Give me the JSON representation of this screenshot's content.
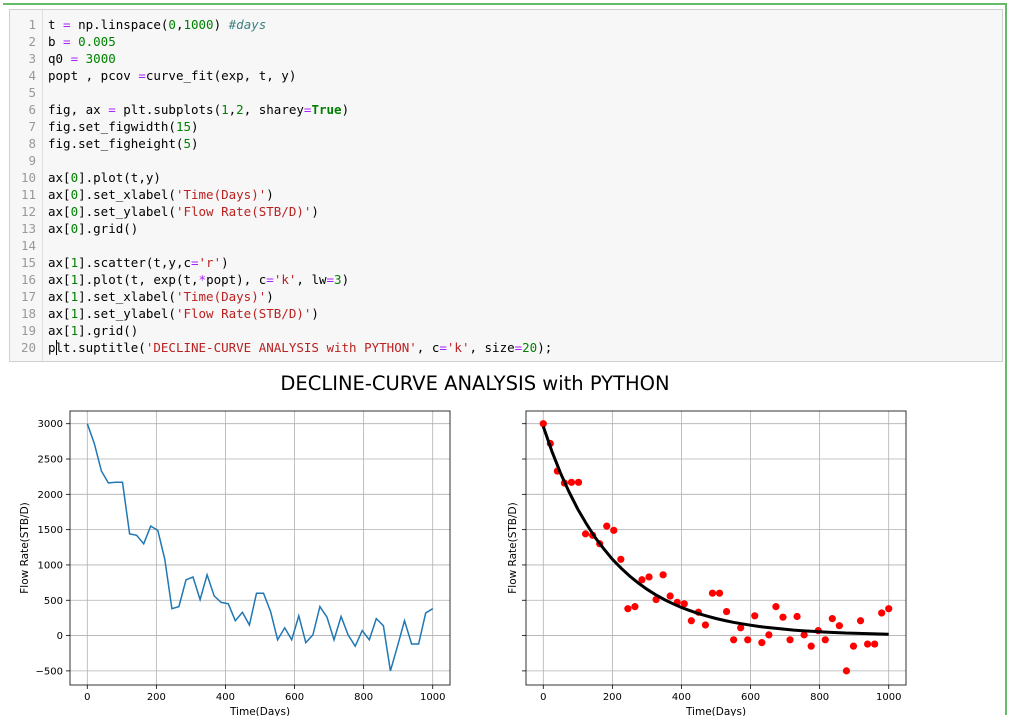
{
  "code_lines": [
    [
      [
        "t",
        "var"
      ],
      [
        " = ",
        "op"
      ],
      [
        "np.linspace(",
        "var"
      ],
      [
        "0",
        "num"
      ],
      [
        ",",
        "var"
      ],
      [
        "1000",
        "num"
      ],
      [
        ") ",
        "var"
      ],
      [
        "#days",
        "com"
      ]
    ],
    [
      [
        "b",
        "var"
      ],
      [
        " = ",
        "op"
      ],
      [
        "0.005",
        "num"
      ]
    ],
    [
      [
        "q0",
        "var"
      ],
      [
        " = ",
        "op"
      ],
      [
        "3000",
        "num"
      ]
    ],
    [
      [
        "popt , pcov ",
        "var"
      ],
      [
        "=",
        "op"
      ],
      [
        "curve_fit(exp, t, y)",
        "var"
      ]
    ],
    [],
    [
      [
        "fig, ax ",
        "var"
      ],
      [
        "=",
        "op"
      ],
      [
        " plt.subplots(",
        "var"
      ],
      [
        "1",
        "num"
      ],
      [
        ",",
        "var"
      ],
      [
        "2",
        "num"
      ],
      [
        ", sharey",
        "var"
      ],
      [
        "=",
        "op"
      ],
      [
        "True",
        "kw"
      ],
      [
        ")",
        "var"
      ]
    ],
    [
      [
        "fig.set_figwidth(",
        "var"
      ],
      [
        "15",
        "num"
      ],
      [
        ")",
        "var"
      ]
    ],
    [
      [
        "fig.set_figheight(",
        "var"
      ],
      [
        "5",
        "num"
      ],
      [
        ")",
        "var"
      ]
    ],
    [],
    [
      [
        "ax[",
        "var"
      ],
      [
        "0",
        "num"
      ],
      [
        "].plot(t,y)",
        "var"
      ]
    ],
    [
      [
        "ax[",
        "var"
      ],
      [
        "0",
        "num"
      ],
      [
        "].set_xlabel(",
        "var"
      ],
      [
        "'Time(Days)'",
        "str"
      ],
      [
        ")",
        "var"
      ]
    ],
    [
      [
        "ax[",
        "var"
      ],
      [
        "0",
        "num"
      ],
      [
        "].set_ylabel(",
        "var"
      ],
      [
        "'Flow Rate(STB/D)'",
        "str"
      ],
      [
        ")",
        "var"
      ]
    ],
    [
      [
        "ax[",
        "var"
      ],
      [
        "0",
        "num"
      ],
      [
        "].grid()",
        "var"
      ]
    ],
    [],
    [
      [
        "ax[",
        "var"
      ],
      [
        "1",
        "num"
      ],
      [
        "].scatter(t,y,c",
        "var"
      ],
      [
        "=",
        "op"
      ],
      [
        "'r'",
        "str"
      ],
      [
        ")",
        "var"
      ]
    ],
    [
      [
        "ax[",
        "var"
      ],
      [
        "1",
        "num"
      ],
      [
        "].plot(t, exp(t,",
        "var"
      ],
      [
        "*",
        "op"
      ],
      [
        "popt), c",
        "var"
      ],
      [
        "=",
        "op"
      ],
      [
        "'k'",
        "str"
      ],
      [
        ", lw",
        "var"
      ],
      [
        "=",
        "op"
      ],
      [
        "3",
        "num"
      ],
      [
        ")",
        "var"
      ]
    ],
    [
      [
        "ax[",
        "var"
      ],
      [
        "1",
        "num"
      ],
      [
        "].set_xlabel(",
        "var"
      ],
      [
        "'Time(Days)'",
        "str"
      ],
      [
        ")",
        "var"
      ]
    ],
    [
      [
        "ax[",
        "var"
      ],
      [
        "1",
        "num"
      ],
      [
        "].set_ylabel(",
        "var"
      ],
      [
        "'Flow Rate(STB/D)'",
        "str"
      ],
      [
        ")",
        "var"
      ]
    ],
    [
      [
        "ax[",
        "var"
      ],
      [
        "1",
        "num"
      ],
      [
        "].grid()",
        "var"
      ]
    ],
    [
      [
        "plt.suptitle(",
        "var"
      ],
      [
        "'DECLINE-CURVE ANALYSIS with PYTHON'",
        "str"
      ],
      [
        ", c",
        "var"
      ],
      [
        "=",
        "op"
      ],
      [
        "'k'",
        "str"
      ],
      [
        ", size",
        "var"
      ],
      [
        "=",
        "op"
      ],
      [
        "20",
        "num"
      ],
      [
        ");",
        "var"
      ]
    ]
  ],
  "figure": {
    "suptitle": "DECLINE-CURVE ANALYSIS with PYTHON"
  },
  "chart_data": [
    {
      "type": "line",
      "xlabel": "Time(Days)",
      "ylabel": "Flow Rate(STB/D)",
      "xlim": [
        -50,
        1050
      ],
      "ylim": [
        -700,
        3180
      ],
      "xticks": [
        0,
        200,
        400,
        600,
        800,
        1000
      ],
      "yticks": [
        -500,
        0,
        500,
        1000,
        1500,
        2000,
        2500,
        3000
      ],
      "grid": true,
      "line_color": "#1f77b4",
      "x": [
        0,
        20.4,
        40.8,
        61.2,
        81.6,
        102,
        122.4,
        142.9,
        163.3,
        183.7,
        204.1,
        224.5,
        244.9,
        265.3,
        285.7,
        306.1,
        326.5,
        346.9,
        367.3,
        387.8,
        408.2,
        428.6,
        449,
        469.4,
        489.8,
        510.2,
        530.6,
        551,
        571.4,
        591.8,
        612.2,
        632.7,
        653.1,
        673.5,
        693.9,
        714.3,
        734.7,
        755.1,
        775.5,
        795.9,
        816.3,
        836.7,
        857.1,
        877.6,
        898,
        918.4,
        938.8,
        959.2,
        979.6,
        1000
      ],
      "y": [
        3000,
        2720,
        2330,
        2160,
        2170,
        2170,
        1440,
        1420,
        1300,
        1550,
        1490,
        1080,
        380,
        410,
        790,
        830,
        510,
        860,
        560,
        470,
        450,
        210,
        330,
        150,
        600,
        600,
        340,
        -60,
        110,
        -60,
        280,
        -100,
        10,
        410,
        260,
        -60,
        270,
        10,
        -150,
        70,
        -60,
        240,
        140,
        -500,
        -150,
        210,
        -120,
        -120,
        320,
        380
      ]
    },
    {
      "type": "scatter",
      "xlabel": "Time(Days)",
      "ylabel": "Flow Rate(STB/D)",
      "xlim": [
        -50,
        1050
      ],
      "ylim": [
        -700,
        3180
      ],
      "xticks": [
        0,
        200,
        400,
        600,
        800,
        1000
      ],
      "yticks": [
        -500,
        0,
        500,
        1000,
        1500,
        2000,
        2500,
        3000
      ],
      "grid": true,
      "point_color": "#ff0000",
      "fit_color": "#000000",
      "x": [
        0,
        20.4,
        40.8,
        61.2,
        81.6,
        102,
        122.4,
        142.9,
        163.3,
        183.7,
        204.1,
        224.5,
        244.9,
        265.3,
        285.7,
        306.1,
        326.5,
        346.9,
        367.3,
        387.8,
        408.2,
        428.6,
        449,
        469.4,
        489.8,
        510.2,
        530.6,
        551,
        571.4,
        591.8,
        612.2,
        632.7,
        653.1,
        673.5,
        693.9,
        714.3,
        734.7,
        755.1,
        775.5,
        795.9,
        816.3,
        836.7,
        857.1,
        877.6,
        898,
        918.4,
        938.8,
        959.2,
        979.6,
        1000
      ],
      "y": [
        3000,
        2720,
        2330,
        2160,
        2170,
        2170,
        1440,
        1420,
        1300,
        1550,
        1490,
        1080,
        380,
        410,
        790,
        830,
        510,
        860,
        560,
        470,
        450,
        210,
        330,
        150,
        600,
        600,
        340,
        -60,
        110,
        -60,
        280,
        -100,
        10,
        410,
        260,
        -60,
        270,
        10,
        -150,
        70,
        -60,
        240,
        140,
        -500,
        -150,
        210,
        -120,
        -120,
        320,
        380
      ],
      "fit_x": [
        0,
        25,
        50,
        75,
        100,
        125,
        150,
        175,
        200,
        225,
        250,
        275,
        300,
        325,
        350,
        375,
        400,
        425,
        450,
        475,
        500,
        525,
        550,
        575,
        600,
        625,
        650,
        675,
        700,
        725,
        750,
        775,
        800,
        825,
        850,
        875,
        900,
        925,
        950,
        975,
        1000
      ],
      "fit_y": [
        2960,
        2610,
        2300,
        2030,
        1790,
        1580,
        1390,
        1230,
        1080,
        955,
        843,
        744,
        656,
        579,
        511,
        451,
        398,
        352,
        310,
        274,
        242,
        213,
        188,
        166,
        147,
        129,
        114,
        101,
        89,
        78,
        69,
        61,
        54,
        47,
        42,
        37,
        33,
        29,
        25,
        22,
        20
      ]
    }
  ]
}
